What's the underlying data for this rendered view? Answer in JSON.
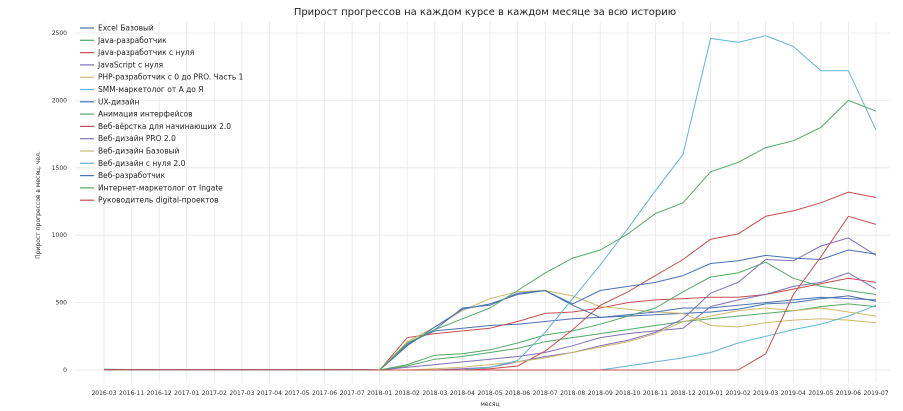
{
  "chart_data": {
    "type": "line",
    "title": "Прирост прогрессов на каждом курсе в каждом месяце за всю историю",
    "xlabel": "месяц",
    "ylabel": "Прирост прогрессов в месяц, чел.",
    "ylim": [
      0,
      2600
    ],
    "yticks": [
      0,
      500,
      1000,
      1500,
      2000,
      2500
    ],
    "grid": true,
    "legend_position": "top-left",
    "categories": [
      "2016-03",
      "2016-11",
      "2016-12",
      "2017-01",
      "2017-02",
      "2017-03",
      "2017-04",
      "2017-05",
      "2017-06",
      "2017-07",
      "2018-01",
      "2018-02",
      "2018-03",
      "2018-04",
      "2018-05",
      "2018-06",
      "2018-07",
      "2018-08",
      "2018-09",
      "2018-10",
      "2018-11",
      "2018-12",
      "2019-01",
      "2019-02",
      "2019-03",
      "2019-04",
      "2019-05",
      "2019-06",
      "2019-07"
    ],
    "series": [
      {
        "name": "Excel Базовый",
        "color": "#4c72b0",
        "values": [
          5,
          3,
          3,
          2,
          2,
          2,
          2,
          3,
          4,
          2,
          0,
          200,
          290,
          310,
          330,
          340,
          360,
          380,
          390,
          400,
          410,
          420,
          430,
          450,
          490,
          500,
          530,
          550,
          510
        ]
      },
      {
        "name": "Java-разработчик",
        "color": "#55a868",
        "values": [
          3,
          2,
          2,
          2,
          2,
          2,
          2,
          2,
          2,
          2,
          0,
          30,
          80,
          100,
          130,
          160,
          210,
          240,
          270,
          300,
          330,
          360,
          380,
          400,
          420,
          440,
          470,
          490,
          470
        ]
      },
      {
        "name": "Java-разработчик с нуля",
        "color": "#c44e52",
        "values": [
          4,
          3,
          2,
          2,
          2,
          2,
          3,
          3,
          3,
          2,
          0,
          240,
          270,
          290,
          310,
          360,
          420,
          430,
          460,
          500,
          520,
          530,
          540,
          540,
          560,
          600,
          640,
          680,
          650
        ]
      },
      {
        "name": "JavaScript с нуля",
        "color": "#8172b2",
        "values": [
          3,
          2,
          2,
          2,
          2,
          2,
          2,
          2,
          3,
          2,
          0,
          20,
          40,
          60,
          80,
          100,
          130,
          180,
          240,
          270,
          290,
          310,
          470,
          520,
          560,
          620,
          650,
          720,
          600
        ]
      },
      {
        "name": "PHP-разработчик с 0 до PRO. Часть 1",
        "color": "#ccb974",
        "values": [
          3,
          2,
          2,
          2,
          2,
          2,
          2,
          2,
          2,
          2,
          0,
          210,
          320,
          440,
          530,
          580,
          590,
          550,
          470,
          450,
          430,
          420,
          330,
          320,
          350,
          370,
          380,
          370,
          350
        ]
      },
      {
        "name": "SMM-маркетолог от А до Я",
        "color": "#64b5cd",
        "values": [
          2,
          2,
          2,
          2,
          2,
          2,
          2,
          2,
          2,
          2,
          0,
          0,
          0,
          0,
          0,
          0,
          0,
          0,
          0,
          30,
          60,
          90,
          130,
          200,
          250,
          300,
          340,
          400,
          480
        ]
      },
      {
        "name": "UX-дизайн",
        "color": "#4c72b0",
        "values": [
          2,
          2,
          2,
          2,
          2,
          2,
          2,
          2,
          3,
          2,
          0,
          190,
          300,
          460,
          480,
          570,
          590,
          480,
          390,
          410,
          430,
          460,
          460,
          480,
          500,
          520,
          540,
          530,
          520
        ]
      },
      {
        "name": "Анимация интерфейсов",
        "color": "#55a868",
        "values": [
          2,
          2,
          2,
          2,
          2,
          2,
          2,
          2,
          2,
          2,
          0,
          40,
          110,
          120,
          150,
          200,
          260,
          290,
          340,
          400,
          460,
          580,
          690,
          720,
          800,
          680,
          620,
          590,
          560
        ]
      },
      {
        "name": "Веб-вёрстка для начинающих 2.0",
        "color": "#c44e52",
        "values": [
          2,
          2,
          2,
          2,
          2,
          2,
          2,
          2,
          2,
          2,
          0,
          0,
          0,
          0,
          10,
          30,
          140,
          300,
          480,
          580,
          700,
          820,
          970,
          1010,
          1140,
          1180,
          1240,
          1320,
          1280
        ]
      },
      {
        "name": "Веб-дизайн PRO 2.0",
        "color": "#8172b2",
        "values": [
          2,
          2,
          2,
          2,
          2,
          2,
          2,
          2,
          2,
          2,
          0,
          0,
          0,
          10,
          20,
          60,
          100,
          130,
          180,
          220,
          280,
          380,
          570,
          650,
          820,
          810,
          920,
          980,
          850
        ]
      },
      {
        "name": "Веб-дизайн Базовый",
        "color": "#ccb974",
        "values": [
          2,
          2,
          2,
          2,
          2,
          2,
          2,
          2,
          2,
          2,
          0,
          0,
          10,
          20,
          40,
          60,
          90,
          130,
          170,
          210,
          270,
          360,
          400,
          440,
          460,
          440,
          460,
          430,
          400
        ]
      },
      {
        "name": "Веб-дизайн с нуля 2.0",
        "color": "#64b5cd",
        "values": [
          2,
          2,
          2,
          2,
          2,
          2,
          2,
          2,
          2,
          2,
          0,
          0,
          0,
          0,
          20,
          70,
          280,
          530,
          780,
          1050,
          1330,
          1600,
          2460,
          2430,
          2480,
          2400,
          2220,
          2220,
          1780
        ]
      },
      {
        "name": "Веб-разработчик",
        "color": "#4c72b0",
        "values": [
          3,
          2,
          2,
          2,
          2,
          2,
          2,
          2,
          3,
          2,
          0,
          180,
          320,
          450,
          490,
          560,
          590,
          490,
          590,
          620,
          650,
          700,
          790,
          810,
          850,
          830,
          820,
          890,
          860
        ]
      },
      {
        "name": "Интернет-маркетолог от Ingate",
        "color": "#55a868",
        "values": [
          3,
          2,
          2,
          2,
          2,
          2,
          2,
          2,
          3,
          2,
          0,
          200,
          300,
          380,
          460,
          590,
          720,
          830,
          890,
          1010,
          1160,
          1240,
          1470,
          1540,
          1650,
          1700,
          1800,
          2000,
          1920
        ]
      },
      {
        "name": "Руководитель digital-проектов",
        "color": "#c44e52",
        "values": [
          2,
          2,
          2,
          2,
          2,
          2,
          2,
          2,
          2,
          2,
          0,
          0,
          0,
          0,
          0,
          0,
          0,
          0,
          0,
          0,
          0,
          0,
          0,
          0,
          120,
          560,
          840,
          1140,
          1080
        ]
      }
    ]
  }
}
